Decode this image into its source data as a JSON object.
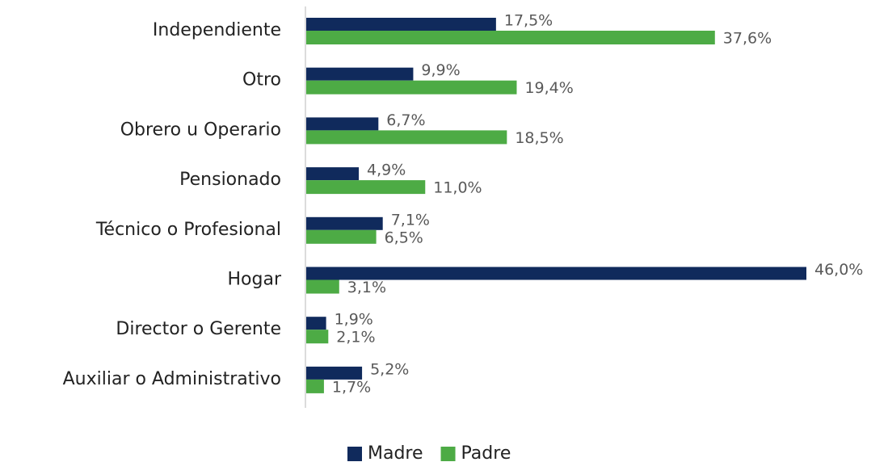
{
  "chart_data": {
    "type": "barh",
    "categories": [
      "Independiente",
      "Otro",
      "Obrero u Operario",
      "Pensionado",
      "Técnico o Profesional",
      "Hogar",
      "Director o Gerente",
      "Auxiliar o Administrativo"
    ],
    "series": [
      {
        "name": "Madre",
        "color": "#102a5c",
        "values": [
          17.5,
          9.9,
          6.7,
          4.9,
          7.1,
          46.0,
          1.9,
          5.2
        ],
        "value_labels": [
          "17,5%",
          "9,9%",
          "6,7%",
          "4,9%",
          "7,1%",
          "46,0%",
          "1,9%",
          "5,2%"
        ]
      },
      {
        "name": "Padre",
        "color": "#4dab45",
        "values": [
          37.6,
          19.4,
          18.5,
          11.0,
          6.5,
          3.1,
          2.1,
          1.7
        ],
        "value_labels": [
          "37,6%",
          "19,4%",
          "18,5%",
          "11,0%",
          "6,5%",
          "3,1%",
          "2,1%",
          "1,7%"
        ]
      }
    ],
    "legend": "bottom"
  }
}
